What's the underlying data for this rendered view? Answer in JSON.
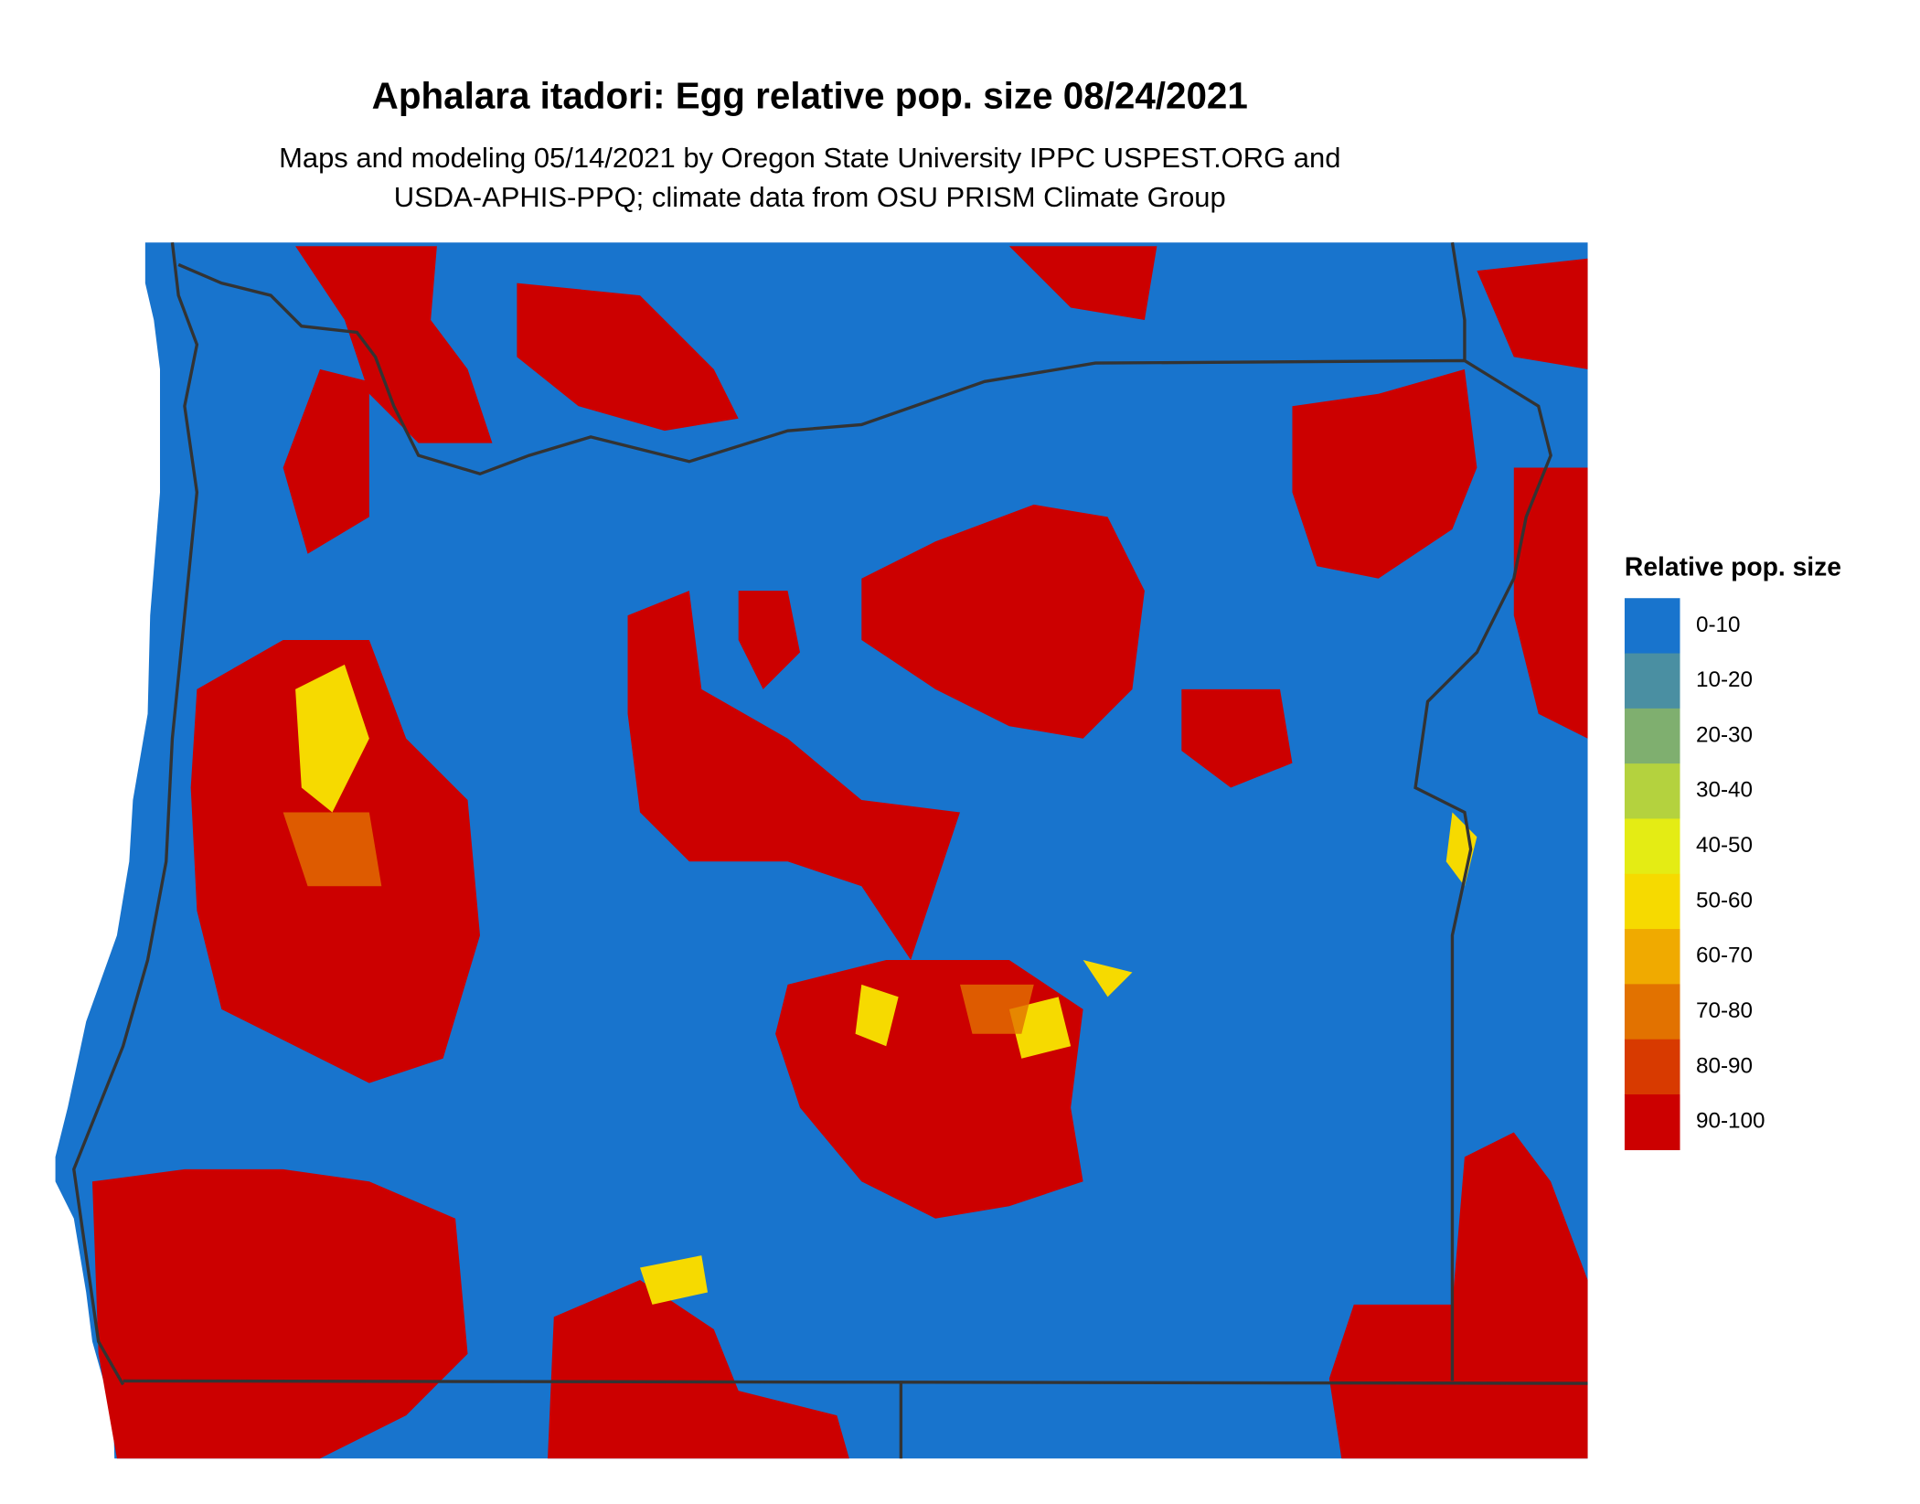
{
  "title": "Aphalara itadori: Egg relative pop. size 08/24/2021",
  "subtitle": [
    "Maps and modeling 05/14/2021 by Oregon State University IPPC USPEST.ORG and",
    "USDA-APHIS-PPQ; climate data from OSU PRISM Climate Group"
  ],
  "legend": {
    "title": "Relative pop. size",
    "items": [
      {
        "label": "0-10",
        "color": "#1874cd"
      },
      {
        "label": "10-20",
        "color": "#4a8fa2"
      },
      {
        "label": "20-30",
        "color": "#7faf6f"
      },
      {
        "label": "30-40",
        "color": "#b4d23e"
      },
      {
        "label": "40-50",
        "color": "#e4ec14"
      },
      {
        "label": "50-60",
        "color": "#f6da00"
      },
      {
        "label": "60-70",
        "color": "#f0aa00"
      },
      {
        "label": "70-80",
        "color": "#e27200"
      },
      {
        "label": "80-90",
        "color": "#d83a00"
      },
      {
        "label": "90-100",
        "color": "#cc0000"
      }
    ]
  }
}
